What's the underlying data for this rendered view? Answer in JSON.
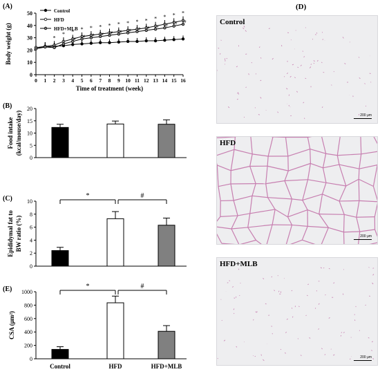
{
  "panels": {
    "A": {
      "letter": "(A)",
      "ylabel": "Body weight (g)",
      "xlabel": "Time of treatment (week)",
      "legend": [
        "Control",
        "HFD",
        "HFD+MLB"
      ],
      "sig_labels": [
        "*",
        "*",
        "*",
        "*",
        "*",
        "*",
        "*",
        "*",
        "*",
        "*",
        "*",
        "*",
        "*",
        "*",
        "*"
      ],
      "sig_hash": [
        "#",
        "#",
        "#",
        "#",
        "#",
        "#",
        "#",
        "#",
        "#",
        "#",
        "#",
        "#",
        "#"
      ]
    },
    "B": {
      "letter": "(B)",
      "ylabel_line1": "Food intake",
      "ylabel_line2": "(kcal/mouse/day)"
    },
    "C": {
      "letter": "(C)",
      "ylabel_line1": "Epididymal fat to",
      "ylabel_line2": "BW ratio (%)",
      "star": "*",
      "hash": "#"
    },
    "E": {
      "letter": "(E)",
      "ylabel": "CSA (μm²)",
      "star": "*",
      "hash": "#"
    },
    "D": {
      "letter": "(D)",
      "images": [
        {
          "label": "Control",
          "scale": "200 μm"
        },
        {
          "label": "HFD",
          "scale": "200 μm"
        },
        {
          "label": "HFD+MLB",
          "scale": "200 μm"
        }
      ]
    }
  },
  "colors": {
    "control": "#000000",
    "hfd": "#ffffff",
    "hfd_mlb": "#808080",
    "tissue": "#c77fb0"
  },
  "chart_data": [
    {
      "type": "line",
      "panel": "A",
      "xlabel": "Time of treatment (week)",
      "ylabel": "Body weight (g)",
      "x": [
        0,
        1,
        2,
        3,
        4,
        5,
        6,
        7,
        8,
        9,
        10,
        11,
        12,
        13,
        14,
        15,
        16
      ],
      "xlim": [
        0,
        16
      ],
      "ylim": [
        0,
        50
      ],
      "yticks": [
        0,
        10,
        20,
        30,
        40,
        50
      ],
      "series": [
        {
          "name": "Control",
          "values": [
            22,
            22.5,
            23,
            23.5,
            24.5,
            25,
            25.5,
            26,
            26,
            26.5,
            27,
            27,
            27.5,
            27.5,
            28,
            28.5,
            29
          ]
        },
        {
          "name": "HFD",
          "values": [
            22,
            23,
            24,
            27,
            29,
            31,
            32,
            33,
            34,
            35,
            36,
            37,
            38,
            39.5,
            41,
            42.5,
            44
          ]
        },
        {
          "name": "HFD+MLB",
          "values": [
            21,
            22.5,
            22,
            25,
            27,
            29,
            30,
            31,
            32,
            33,
            34,
            35,
            36,
            37,
            38,
            39.5,
            41
          ]
        }
      ]
    },
    {
      "type": "bar",
      "panel": "B",
      "categories": [
        "Control",
        "HFD",
        "HFD+MLB"
      ],
      "values": [
        12.3,
        13.7,
        13.6
      ],
      "errors": [
        1.3,
        1.2,
        1.8
      ],
      "ylim": [
        0,
        20
      ],
      "yticks": [
        0,
        5,
        10,
        15,
        20
      ]
    },
    {
      "type": "bar",
      "panel": "C",
      "categories": [
        "Control",
        "HFD",
        "HFD+MLB"
      ],
      "values": [
        2.4,
        7.3,
        6.3
      ],
      "errors": [
        0.5,
        1.1,
        1.1
      ],
      "ylim": [
        0,
        10
      ],
      "yticks": [
        0,
        2,
        4,
        6,
        8,
        10
      ]
    },
    {
      "type": "bar",
      "panel": "E",
      "categories": [
        "Control",
        "HFD",
        "HFD+MLB"
      ],
      "values": [
        140,
        835,
        410
      ],
      "errors": [
        40,
        100,
        85
      ],
      "ylim": [
        0,
        1000
      ],
      "yticks": [
        0,
        200,
        400,
        600,
        800,
        1000
      ]
    }
  ]
}
